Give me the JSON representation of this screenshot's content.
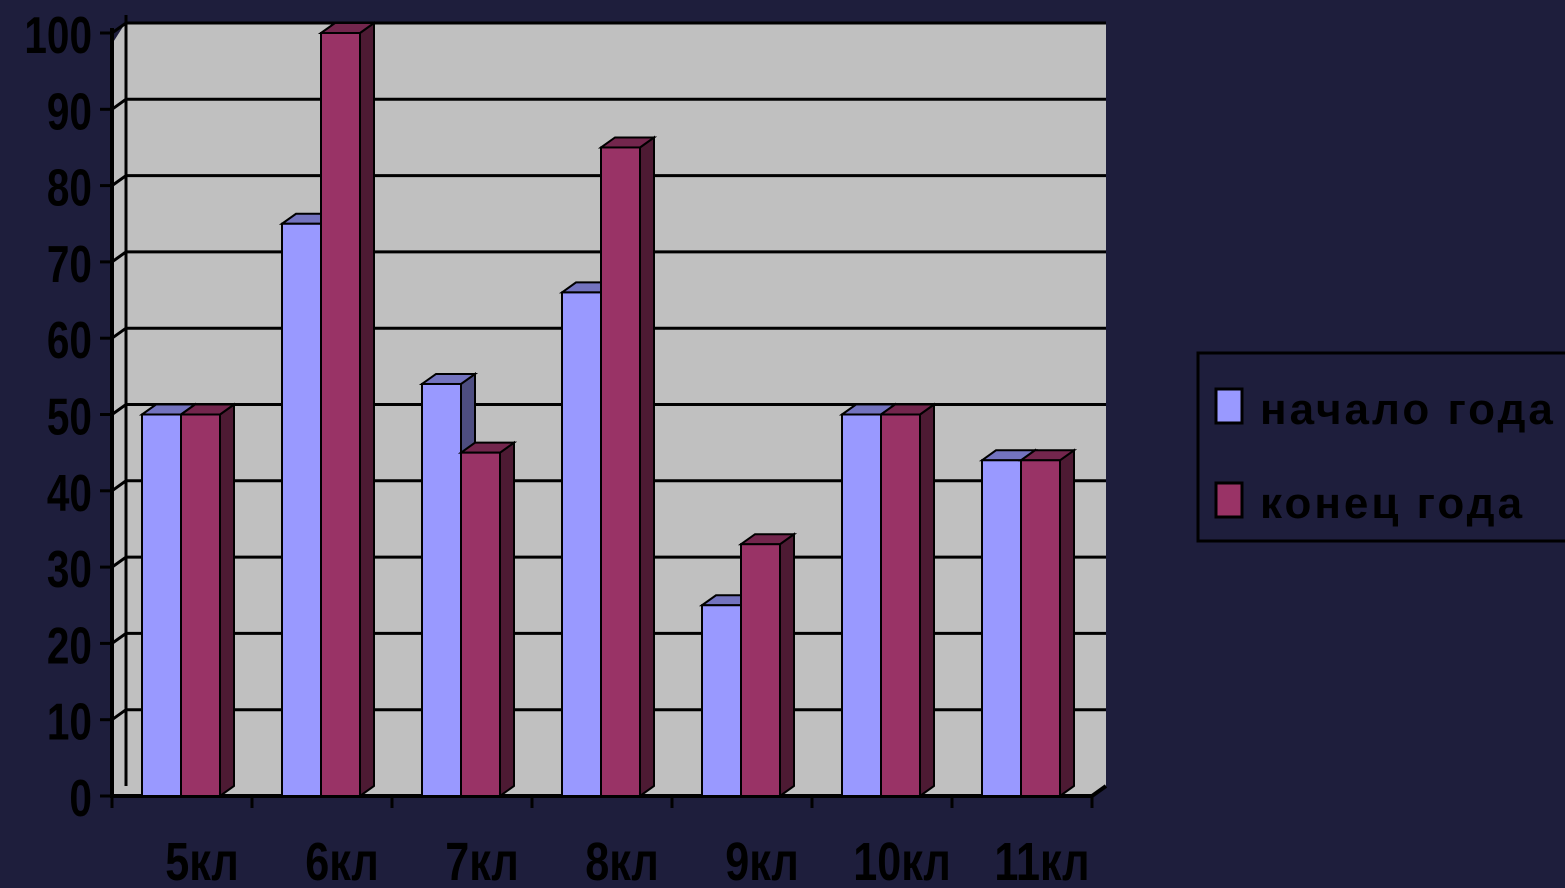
{
  "chart_data": {
    "type": "bar",
    "title": "",
    "xlabel": "",
    "ylabel": "",
    "categories": [
      "5кл",
      "6кл",
      "7кл",
      "8кл",
      "9кл",
      "10кл",
      "11кл"
    ],
    "series": [
      {
        "name": "начало года",
        "color": "#9999ff",
        "values": [
          50,
          75,
          54,
          66,
          25,
          50,
          44
        ]
      },
      {
        "name": "конец года",
        "color": "#993366",
        "values": [
          50,
          100,
          45,
          85,
          33,
          50,
          44
        ]
      }
    ],
    "ylim": [
      0,
      100
    ],
    "yticks": [
      "0",
      "10",
      "20",
      "30",
      "40",
      "50",
      "60",
      "70",
      "80",
      "90",
      "100"
    ],
    "grid": true,
    "legend_position": "right",
    "colors": {
      "background": "#1e1e3c",
      "plot_area": "#c0c0c0",
      "gridlines": "#000000",
      "text": "#000000"
    }
  }
}
